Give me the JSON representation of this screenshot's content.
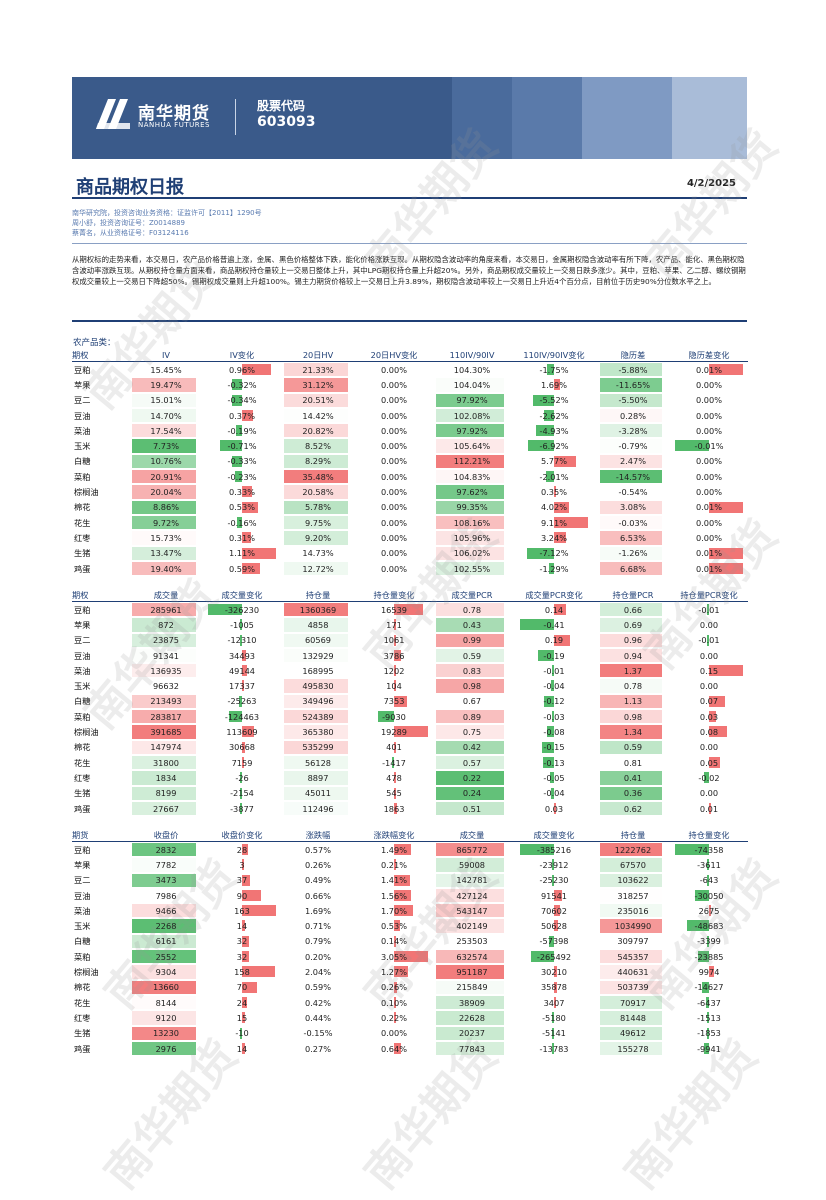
{
  "header": {
    "logo_cn": "南华期货",
    "logo_en": "NANHUA FUTURES",
    "code_label": "股票代码",
    "code_value": "603093"
  },
  "title": "商品期权日报",
  "date": "4/2/2025",
  "meta": [
    "南华研究院，投资咨询业务资格：证监许可【2011】1290号",
    "周小舒，投资咨询证号：Z0014889",
    "蔡菁名，从业资格证号：F03124116"
  ],
  "summary": "从期权标的走势来看，本交易日，农产品价格普遍上涨，金属、黑色价格整体下跌，能化价格涨跌互现。从期权隐含波动率的角度来看，本交易日，金属期权隐含波动率有所下降，农产品、能化、黑色期权隐含波动率涨跌互现。从期权持仓量方面来看，商品期权持仓量较上一交易日整体上升，其中LPG期权持仓量上升超20%。另外，商品期权成交量较上一交易日跌多涨少。其中，豆粕、苹果、乙二醇、螺纹钢期权成交量较上一交易日下降超50%。锡期权成交量则上升超100%。锡主力期货价格较上一交易日上升3.89%，期权隐含波动率较上一交易日上升近4个百分点，目前位于历史90%分位数水平之上。",
  "section_label": "农产品类：",
  "colors": {
    "red": "#f06666",
    "green": "#3fb35a",
    "navy": "#1f3f75"
  },
  "table1": {
    "headers": [
      "期权",
      "IV",
      "IV变化",
      "20日HV",
      "20日HV变化",
      "110IV/90IV",
      "110IV/90IV变化",
      "隐历差",
      "隐历差变化"
    ],
    "rows": [
      [
        "豆粕",
        "15.45%",
        "0.96%",
        "21.33%",
        "0.00%",
        "104.30%",
        "-1.75%",
        "-5.88%",
        "0.01%"
      ],
      [
        "苹果",
        "19.47%",
        "-0.32%",
        "31.12%",
        "0.00%",
        "104.04%",
        "1.69%",
        "-11.65%",
        "0.00%"
      ],
      [
        "豆二",
        "15.01%",
        "-0.34%",
        "20.51%",
        "0.00%",
        "97.92%",
        "-5.52%",
        "-5.50%",
        "0.00%"
      ],
      [
        "豆油",
        "14.70%",
        "0.37%",
        "14.42%",
        "0.00%",
        "102.08%",
        "-2.62%",
        "0.28%",
        "0.00%"
      ],
      [
        "菜油",
        "17.54%",
        "-0.19%",
        "20.82%",
        "0.00%",
        "97.92%",
        "-4.93%",
        "-3.28%",
        "0.00%"
      ],
      [
        "玉米",
        "7.73%",
        "-0.71%",
        "8.52%",
        "0.00%",
        "105.64%",
        "-6.92%",
        "-0.79%",
        "-0.01%"
      ],
      [
        "白糖",
        "10.76%",
        "-0.33%",
        "8.29%",
        "0.00%",
        "112.21%",
        "5.77%",
        "2.47%",
        "0.00%"
      ],
      [
        "菜粕",
        "20.91%",
        "-0.23%",
        "35.48%",
        "0.00%",
        "104.83%",
        "-2.01%",
        "-14.57%",
        "0.00%"
      ],
      [
        "棕榈油",
        "20.04%",
        "0.33%",
        "20.58%",
        "0.00%",
        "97.62%",
        "0.35%",
        "-0.54%",
        "0.00%"
      ],
      [
        "棉花",
        "8.86%",
        "0.53%",
        "5.78%",
        "0.00%",
        "99.35%",
        "4.02%",
        "3.08%",
        "0.01%"
      ],
      [
        "花生",
        "9.72%",
        "-0.16%",
        "9.75%",
        "0.00%",
        "108.16%",
        "9.11%",
        "-0.03%",
        "0.00%"
      ],
      [
        "红枣",
        "15.73%",
        "0.31%",
        "9.20%",
        "0.00%",
        "105.96%",
        "3.24%",
        "6.53%",
        "0.00%"
      ],
      [
        "生猪",
        "13.47%",
        "1.11%",
        "14.73%",
        "0.00%",
        "106.02%",
        "-7.12%",
        "-1.26%",
        "0.01%"
      ],
      [
        "鸡蛋",
        "19.40%",
        "0.59%",
        "12.72%",
        "0.00%",
        "102.55%",
        "-1.29%",
        "6.68%",
        "0.01%"
      ]
    ]
  },
  "table2": {
    "headers": [
      "期权",
      "成交量",
      "成交量变化",
      "持仓量",
      "持仓量变化",
      "成交量PCR",
      "成交量PCR变化",
      "持仓量PCR",
      "持仓量PCR变化"
    ],
    "rows": [
      [
        "豆粕",
        "285961",
        "-326230",
        "1360369",
        "16539",
        "0.78",
        "0.14",
        "0.66",
        "-0.01"
      ],
      [
        "苹果",
        "872",
        "-1005",
        "4858",
        "171",
        "0.43",
        "-0.41",
        "0.69",
        "0.00"
      ],
      [
        "豆二",
        "23875",
        "-12310",
        "60569",
        "1061",
        "0.99",
        "0.19",
        "0.96",
        "-0.01"
      ],
      [
        "豆油",
        "91341",
        "34493",
        "132929",
        "3786",
        "0.59",
        "-0.19",
        "0.94",
        "0.00"
      ],
      [
        "菜油",
        "136935",
        "49144",
        "168995",
        "1202",
        "0.83",
        "-0.01",
        "1.37",
        "0.15"
      ],
      [
        "玉米",
        "96632",
        "17337",
        "495830",
        "104",
        "0.98",
        "-0.04",
        "0.78",
        "0.00"
      ],
      [
        "白糖",
        "213493",
        "-25263",
        "349496",
        "7353",
        "0.67",
        "-0.12",
        "1.13",
        "0.07"
      ],
      [
        "菜粕",
        "283817",
        "-124463",
        "524389",
        "-9030",
        "0.89",
        "-0.03",
        "0.98",
        "0.03"
      ],
      [
        "棕榈油",
        "391685",
        "113609",
        "365380",
        "19289",
        "0.75",
        "-0.08",
        "1.34",
        "0.08"
      ],
      [
        "棉花",
        "147974",
        "30668",
        "535299",
        "401",
        "0.42",
        "-0.15",
        "0.59",
        "0.00"
      ],
      [
        "花生",
        "31800",
        "7159",
        "56128",
        "-1417",
        "0.57",
        "-0.13",
        "0.81",
        "0.05"
      ],
      [
        "红枣",
        "1834",
        "-26",
        "8897",
        "478",
        "0.22",
        "-0.05",
        "0.41",
        "-0.02"
      ],
      [
        "生猪",
        "8199",
        "-2154",
        "45011",
        "545",
        "0.24",
        "-0.04",
        "0.36",
        "0.00"
      ],
      [
        "鸡蛋",
        "27667",
        "-3877",
        "112496",
        "1863",
        "0.51",
        "0.03",
        "0.62",
        "0.01"
      ]
    ]
  },
  "table3": {
    "headers": [
      "期货",
      "收盘价",
      "收盘价变化",
      "涨跌幅",
      "涨跌幅变化",
      "成交量",
      "成交量变化",
      "持仓量",
      "持仓量变化"
    ],
    "rows": [
      [
        "豆粕",
        "2832",
        "28",
        "0.57%",
        "1.49%",
        "865772",
        "-385216",
        "1222762",
        "-74358"
      ],
      [
        "苹果",
        "7782",
        "3",
        "0.26%",
        "0.21%",
        "59008",
        "-23912",
        "67570",
        "-3611"
      ],
      [
        "豆二",
        "3473",
        "37",
        "0.49%",
        "1.41%",
        "142781",
        "-25230",
        "103622",
        "-643"
      ],
      [
        "豆油",
        "7986",
        "90",
        "0.66%",
        "1.56%",
        "427124",
        "91541",
        "318257",
        "-30050"
      ],
      [
        "菜油",
        "9466",
        "163",
        "1.69%",
        "1.70%",
        "543147",
        "70602",
        "235016",
        "2675"
      ],
      [
        "玉米",
        "2268",
        "14",
        "0.71%",
        "0.53%",
        "402149",
        "50628",
        "1034990",
        "-48683"
      ],
      [
        "白糖",
        "6161",
        "32",
        "0.79%",
        "0.14%",
        "253503",
        "-57398",
        "309797",
        "-3399"
      ],
      [
        "菜粕",
        "2552",
        "32",
        "0.20%",
        "3.05%",
        "632574",
        "-265492",
        "545357",
        "-23885"
      ],
      [
        "棕榈油",
        "9304",
        "158",
        "2.04%",
        "1.27%",
        "951187",
        "30210",
        "440631",
        "9974"
      ],
      [
        "棉花",
        "13660",
        "70",
        "0.59%",
        "0.26%",
        "215849",
        "35878",
        "503739",
        "-14627"
      ],
      [
        "花生",
        "8144",
        "24",
        "0.42%",
        "0.10%",
        "38909",
        "3407",
        "70917",
        "-6437"
      ],
      [
        "红枣",
        "9120",
        "15",
        "0.44%",
        "0.22%",
        "22628",
        "-5180",
        "81448",
        "-1513"
      ],
      [
        "生猪",
        "13230",
        "-10",
        "-0.15%",
        "0.00%",
        "20237",
        "-5141",
        "49612",
        "-1853"
      ],
      [
        "鸡蛋",
        "2976",
        "14",
        "0.27%",
        "0.64%",
        "77843",
        "-13783",
        "155278",
        "-9941"
      ]
    ]
  },
  "watermark": "南华期货"
}
